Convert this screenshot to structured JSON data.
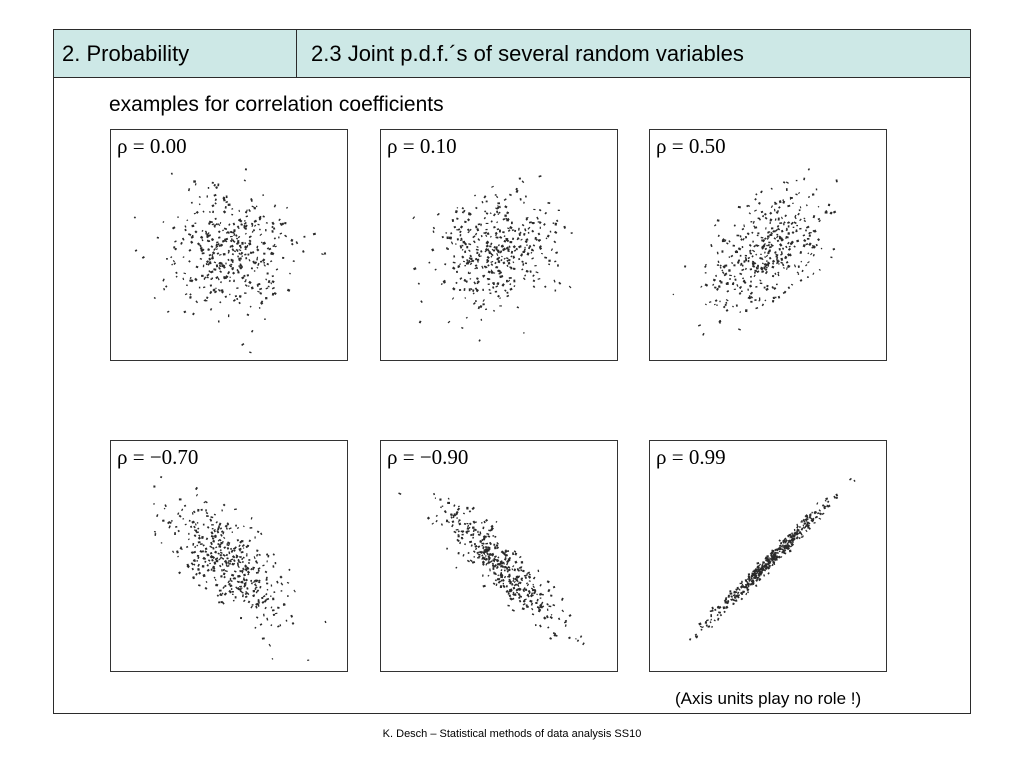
{
  "header": {
    "section": "2. Probability",
    "topic": "2.3 Joint p.d.f.´s of several random variables"
  },
  "subtitle": "examples for correlation coefficients",
  "panels": [
    {
      "label": "ρ = 0.00",
      "rho": 0.0
    },
    {
      "label": "ρ = 0.10",
      "rho": 0.1
    },
    {
      "label": "ρ = 0.50",
      "rho": 0.5
    },
    {
      "label": "ρ = −0.70",
      "rho": -0.7
    },
    {
      "label": "ρ = −0.90",
      "rho": -0.9
    },
    {
      "label": "ρ = 0.99",
      "rho": 0.99
    }
  ],
  "note": "(Axis units play no role !)",
  "footer": "K. Desch – Statistical methods of data analysis SS10",
  "colors": {
    "header_bg": "#cde8e6",
    "border": "#2b2b2b",
    "dots": "#2a2a2a"
  }
}
